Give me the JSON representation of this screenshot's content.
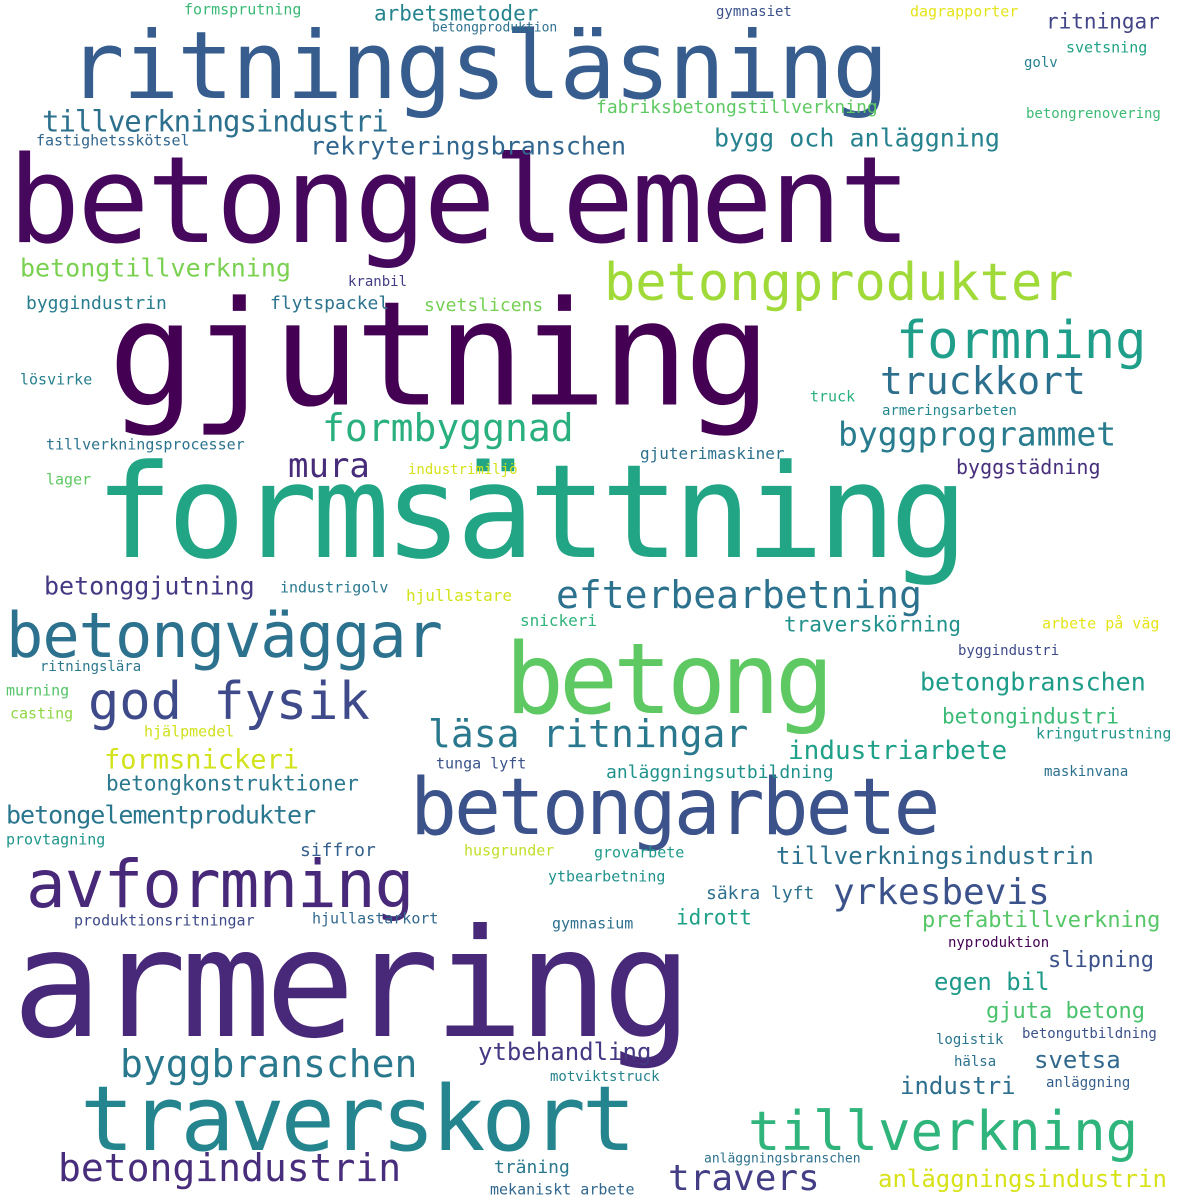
{
  "words": [
    {
      "text": "armering",
      "color": "#482878"
    },
    {
      "text": "formsättning",
      "color": "#21a585"
    },
    {
      "text": "betongelement",
      "color": "#46085c"
    },
    {
      "text": "gjutning",
      "color": "#440154"
    },
    {
      "text": "ritningsläsning",
      "color": "#365d8d"
    },
    {
      "text": "betong",
      "color": "#5ec962"
    },
    {
      "text": "traverskort",
      "color": "#25858e"
    },
    {
      "text": "betongarbete",
      "color": "#3b528b"
    },
    {
      "text": "avformning",
      "color": "#482878"
    },
    {
      "text": "betongväggar",
      "color": "#2c728e"
    },
    {
      "text": "betongprodukter",
      "color": "#a0da39"
    },
    {
      "text": "tillverkning",
      "color": "#2fb47c"
    },
    {
      "text": "god fysik",
      "color": "#3e4a89"
    },
    {
      "text": "formning",
      "color": "#1f9e89"
    },
    {
      "text": "betongindustrin",
      "color": "#472d7b"
    },
    {
      "text": "byggbranschen",
      "color": "#2a788e"
    },
    {
      "text": "efterbearbetning",
      "color": "#2c728e"
    },
    {
      "text": "truckkort",
      "color": "#2d708e"
    },
    {
      "text": "läsa ritningar",
      "color": "#2a788e"
    },
    {
      "text": "formbyggnad",
      "color": "#2ab07f"
    },
    {
      "text": "byggprogrammet",
      "color": "#287c8e"
    },
    {
      "text": "yrkesbevis",
      "color": "#3b528b"
    },
    {
      "text": "travers",
      "color": "#433e85"
    },
    {
      "text": "mura",
      "color": "#472c7a"
    },
    {
      "text": "tillverkningsindustri",
      "color": "#2d708e"
    },
    {
      "text": "rekryteringsbranschen",
      "color": "#31668e"
    },
    {
      "text": "bygg och anläggning",
      "color": "#26828e"
    },
    {
      "text": "betongtillverkning",
      "color": "#7ad151"
    },
    {
      "text": "formsnickeri",
      "color": "#d2e21b"
    },
    {
      "text": "betonggjutning",
      "color": "#443a83"
    },
    {
      "text": "betongbranschen",
      "color": "#1e9c89"
    },
    {
      "text": "betongelementprodukter",
      "color": "#2a768e"
    },
    {
      "text": "tillverkningsindustrin",
      "color": "#2c728e"
    },
    {
      "text": "industriarbete",
      "color": "#1fa088"
    },
    {
      "text": "anläggningsindustrin",
      "color": "#d8e219"
    },
    {
      "text": "ytbehandling",
      "color": "#443983"
    },
    {
      "text": "arbetsmetoder",
      "color": "#25848e"
    },
    {
      "text": "betongkonstruktioner",
      "color": "#2a788e"
    },
    {
      "text": "betongindustri",
      "color": "#3bbb75"
    },
    {
      "text": "prefabtillverkning",
      "color": "#56c667"
    },
    {
      "text": "traverskörning",
      "color": "#21918c"
    },
    {
      "text": "svetsa",
      "color": "#31688e"
    },
    {
      "text": "industri",
      "color": "#2e6e8e"
    },
    {
      "text": "egen bil",
      "color": "#1f9a8a"
    },
    {
      "text": "slipning",
      "color": "#3b528b"
    },
    {
      "text": "gjuta betong",
      "color": "#4ac16d"
    },
    {
      "text": "ritningar",
      "color": "#414487"
    },
    {
      "text": "idrott",
      "color": "#1fa088"
    },
    {
      "text": "byggstädning",
      "color": "#472f7d"
    },
    {
      "text": "anläggningsutbildning",
      "color": "#20928c"
    },
    {
      "text": "byggindustrin",
      "color": "#287d8e"
    },
    {
      "text": "flytspackel",
      "color": "#2c738e"
    },
    {
      "text": "fabriksbetongstillverkning",
      "color": "#5ec962"
    },
    {
      "text": "svetslicens",
      "color": "#75d054"
    },
    {
      "text": "siffror",
      "color": "#35608d"
    },
    {
      "text": "träning",
      "color": "#2a788e"
    },
    {
      "text": "säkra lyft",
      "color": "#2d708e"
    },
    {
      "text": "gjuterimaskiner",
      "color": "#2d718e"
    },
    {
      "text": "tillverkningsprocesser",
      "color": "#2c738e"
    },
    {
      "text": "fastighetsskötsel",
      "color": "#31668e"
    },
    {
      "text": "snickeri",
      "color": "#2fb47c"
    },
    {
      "text": "hjullastare",
      "color": "#d2e21b"
    },
    {
      "text": "industrigolv",
      "color": "#2a788e"
    },
    {
      "text": "formsprutning",
      "color": "#3aba76"
    },
    {
      "text": "betongproduktion",
      "color": "#2d708e"
    },
    {
      "text": "gymnasiet",
      "color": "#3b528b"
    },
    {
      "text": "dagrapporter",
      "color": "#e5e419"
    },
    {
      "text": "svetsning",
      "color": "#20a386"
    },
    {
      "text": "golv",
      "color": "#26818e"
    },
    {
      "text": "betongrenovering",
      "color": "#3bbb75"
    },
    {
      "text": "kranbil",
      "color": "#433e85"
    },
    {
      "text": "lösvirke",
      "color": "#277f8e"
    },
    {
      "text": "truck",
      "color": "#2ab07f"
    },
    {
      "text": "armeringsarbeten",
      "color": "#24878e"
    },
    {
      "text": "lager",
      "color": "#5ec962"
    },
    {
      "text": "industrimiljö",
      "color": "#d5e21a"
    },
    {
      "text": "arbete på väg",
      "color": "#e5e419"
    },
    {
      "text": "byggindustri",
      "color": "#3e4a89"
    },
    {
      "text": "ritningslära",
      "color": "#2a788e"
    },
    {
      "text": "murning",
      "color": "#54c568"
    },
    {
      "text": "casting",
      "color": "#8fd744"
    },
    {
      "text": "hjälpmedel",
      "color": "#d0e11c"
    },
    {
      "text": "tunga lyft",
      "color": "#3b528b"
    },
    {
      "text": "kringutrustning",
      "color": "#1f968b"
    },
    {
      "text": "maskinvana",
      "color": "#2d718e"
    },
    {
      "text": "provtagning",
      "color": "#1f968b"
    },
    {
      "text": "husgrunder",
      "color": "#c0df25"
    },
    {
      "text": "grovarbete",
      "color": "#1e9b8a"
    },
    {
      "text": "ytbearbetning",
      "color": "#21918c"
    },
    {
      "text": "produktionsritningar",
      "color": "#3e4a89"
    },
    {
      "text": "hjullastarkort",
      "color": "#31688e"
    },
    {
      "text": "gymnasium",
      "color": "#2d708e"
    },
    {
      "text": "nyproduktion",
      "color": "#440154"
    },
    {
      "text": "logistik",
      "color": "#2a768e"
    },
    {
      "text": "betongutbildning",
      "color": "#3b528b"
    },
    {
      "text": "hälsa",
      "color": "#2d718e"
    },
    {
      "text": "motviktstruck",
      "color": "#25848e"
    },
    {
      "text": "anläggning",
      "color": "#355f8d"
    },
    {
      "text": "anläggningsbranschen",
      "color": "#2d718e"
    },
    {
      "text": "mekaniskt arbete",
      "color": "#31678e"
    }
  ]
}
